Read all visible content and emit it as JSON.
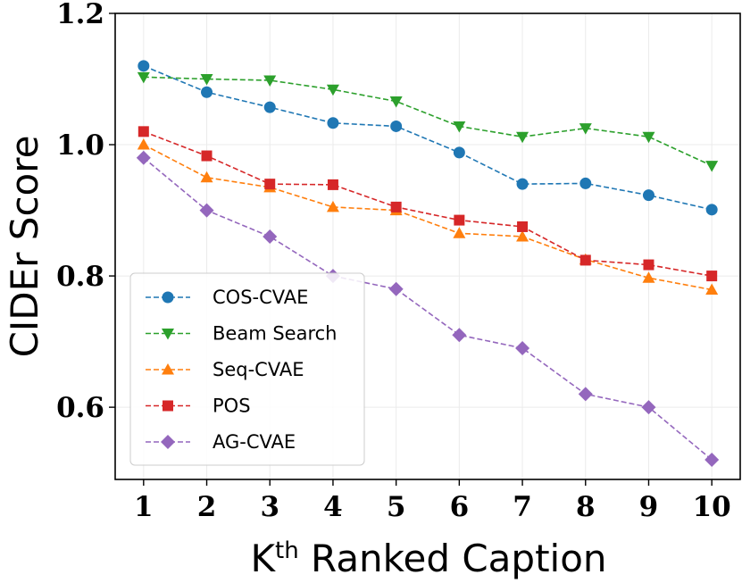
{
  "chart_data": {
    "type": "line",
    "xlabel": "K",
    "xlabel_superscript": "th",
    "xlabel_rest": " Ranked Caption",
    "ylabel": "CIDEr Score",
    "x": [
      1,
      2,
      3,
      4,
      5,
      6,
      7,
      8,
      9,
      10
    ],
    "xlim": [
      0.55,
      10.45
    ],
    "ylim": [
      0.49,
      1.2
    ],
    "yticks": [
      0.6,
      0.8,
      1.0,
      1.2
    ],
    "ytick_labels": [
      "0.6",
      "0.8",
      "1.0",
      "1.2"
    ],
    "xtick_labels": [
      "1",
      "2",
      "3",
      "4",
      "5",
      "6",
      "7",
      "8",
      "9",
      "10"
    ],
    "grid": true,
    "legend_position": "lower-left",
    "series": [
      {
        "name": "COS-CVAE",
        "color": "#1f77b4",
        "marker": "circle",
        "values": [
          1.12,
          1.08,
          1.057,
          1.033,
          1.028,
          0.988,
          0.94,
          0.941,
          0.923,
          0.901
        ]
      },
      {
        "name": "Beam Search",
        "color": "#2ca02c",
        "marker": "triangle-down",
        "values": [
          1.103,
          1.1,
          1.098,
          1.084,
          1.066,
          1.028,
          1.012,
          1.025,
          1.012,
          0.968
        ]
      },
      {
        "name": "Seq-CVAE",
        "color": "#ff7f0e",
        "marker": "triangle-up",
        "values": [
          1.0,
          0.95,
          0.935,
          0.905,
          0.9,
          0.865,
          0.86,
          0.825,
          0.797,
          0.779
        ]
      },
      {
        "name": "POS",
        "color": "#d62728",
        "marker": "square",
        "values": [
          1.02,
          0.983,
          0.94,
          0.939,
          0.905,
          0.885,
          0.875,
          0.824,
          0.817,
          0.8
        ]
      },
      {
        "name": "AG-CVAE",
        "color": "#9467bd",
        "marker": "diamond",
        "values": [
          0.98,
          0.9,
          0.86,
          0.8,
          0.78,
          0.71,
          0.69,
          0.62,
          0.6,
          0.52
        ]
      }
    ]
  }
}
